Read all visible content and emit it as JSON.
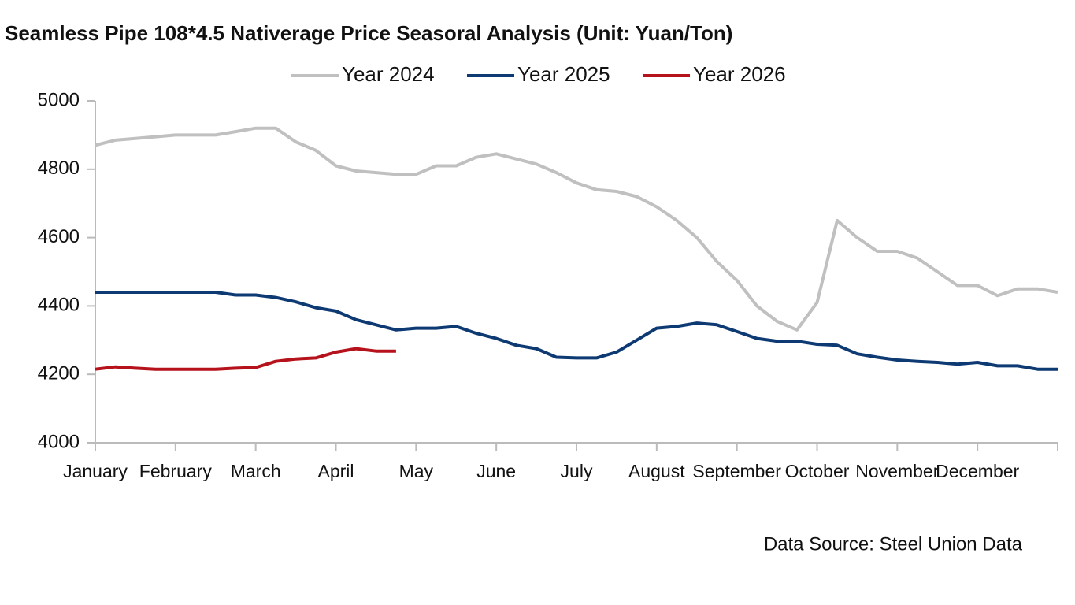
{
  "chart_data": {
    "type": "line",
    "title": "Seamless Pipe 108*4.5 Nativerage Price Seasoral Analysis (Unit: Yuan/Ton)",
    "source": "Data Source: Steel Union Data",
    "categories": [
      "January",
      null,
      null,
      null,
      "February",
      null,
      null,
      null,
      "March",
      null,
      null,
      null,
      "April",
      null,
      null,
      null,
      "May",
      null,
      null,
      null,
      "June",
      null,
      null,
      null,
      "July",
      null,
      null,
      null,
      "August",
      null,
      null,
      null,
      "September",
      null,
      null,
      null,
      "October",
      null,
      null,
      null,
      "November",
      null,
      null,
      null,
      "December",
      null,
      null,
      null,
      null
    ],
    "series": [
      {
        "name": "Year 2024",
        "color": "#c0c0c0",
        "values": [
          4870,
          4885,
          4890,
          4895,
          4900,
          4900,
          4900,
          4910,
          4920,
          4920,
          4880,
          4855,
          4810,
          4795,
          4790,
          4785,
          4785,
          4810,
          4810,
          4835,
          4845,
          4830,
          4815,
          4790,
          4760,
          4740,
          4735,
          4720,
          4690,
          4650,
          4600,
          4530,
          4475,
          4400,
          4355,
          4330,
          4410,
          4650,
          4600,
          4560,
          4560,
          4540,
          4500,
          4460,
          4460,
          4430,
          4450,
          4450,
          4440
        ]
      },
      {
        "name": "Year 2025",
        "color": "#0e3a73",
        "values": [
          4440,
          4440,
          4440,
          4440,
          4440,
          4440,
          4440,
          4432,
          4432,
          4425,
          4412,
          4395,
          4385,
          4360,
          4345,
          4330,
          4335,
          4335,
          4340,
          4320,
          4305,
          4285,
          4275,
          4250,
          4248,
          4248,
          4265,
          4300,
          4335,
          4340,
          4350,
          4345,
          4325,
          4305,
          4297,
          4297,
          4288,
          4285,
          4260,
          4250,
          4242,
          4238,
          4235,
          4230,
          4235,
          4225,
          4225,
          4215,
          4215
        ]
      },
      {
        "name": "Year 2026",
        "color": "#b5121b",
        "values": [
          4215,
          4222,
          4218,
          4215,
          4215,
          4215,
          4215,
          4218,
          4220,
          4238,
          4245,
          4248,
          4265,
          4275,
          4268,
          4268,
          null,
          null,
          null,
          null,
          null,
          null,
          null,
          null,
          null,
          null,
          null,
          null,
          null,
          null,
          null,
          null,
          null,
          null,
          null,
          null,
          null,
          null,
          null,
          null,
          null,
          null,
          null,
          null,
          null,
          null,
          null,
          null,
          null
        ]
      }
    ],
    "ylim": [
      4000,
      5000
    ],
    "yticks": [
      4000,
      4200,
      4400,
      4600,
      4800,
      5000
    ],
    "grid": false,
    "legend": "top"
  }
}
